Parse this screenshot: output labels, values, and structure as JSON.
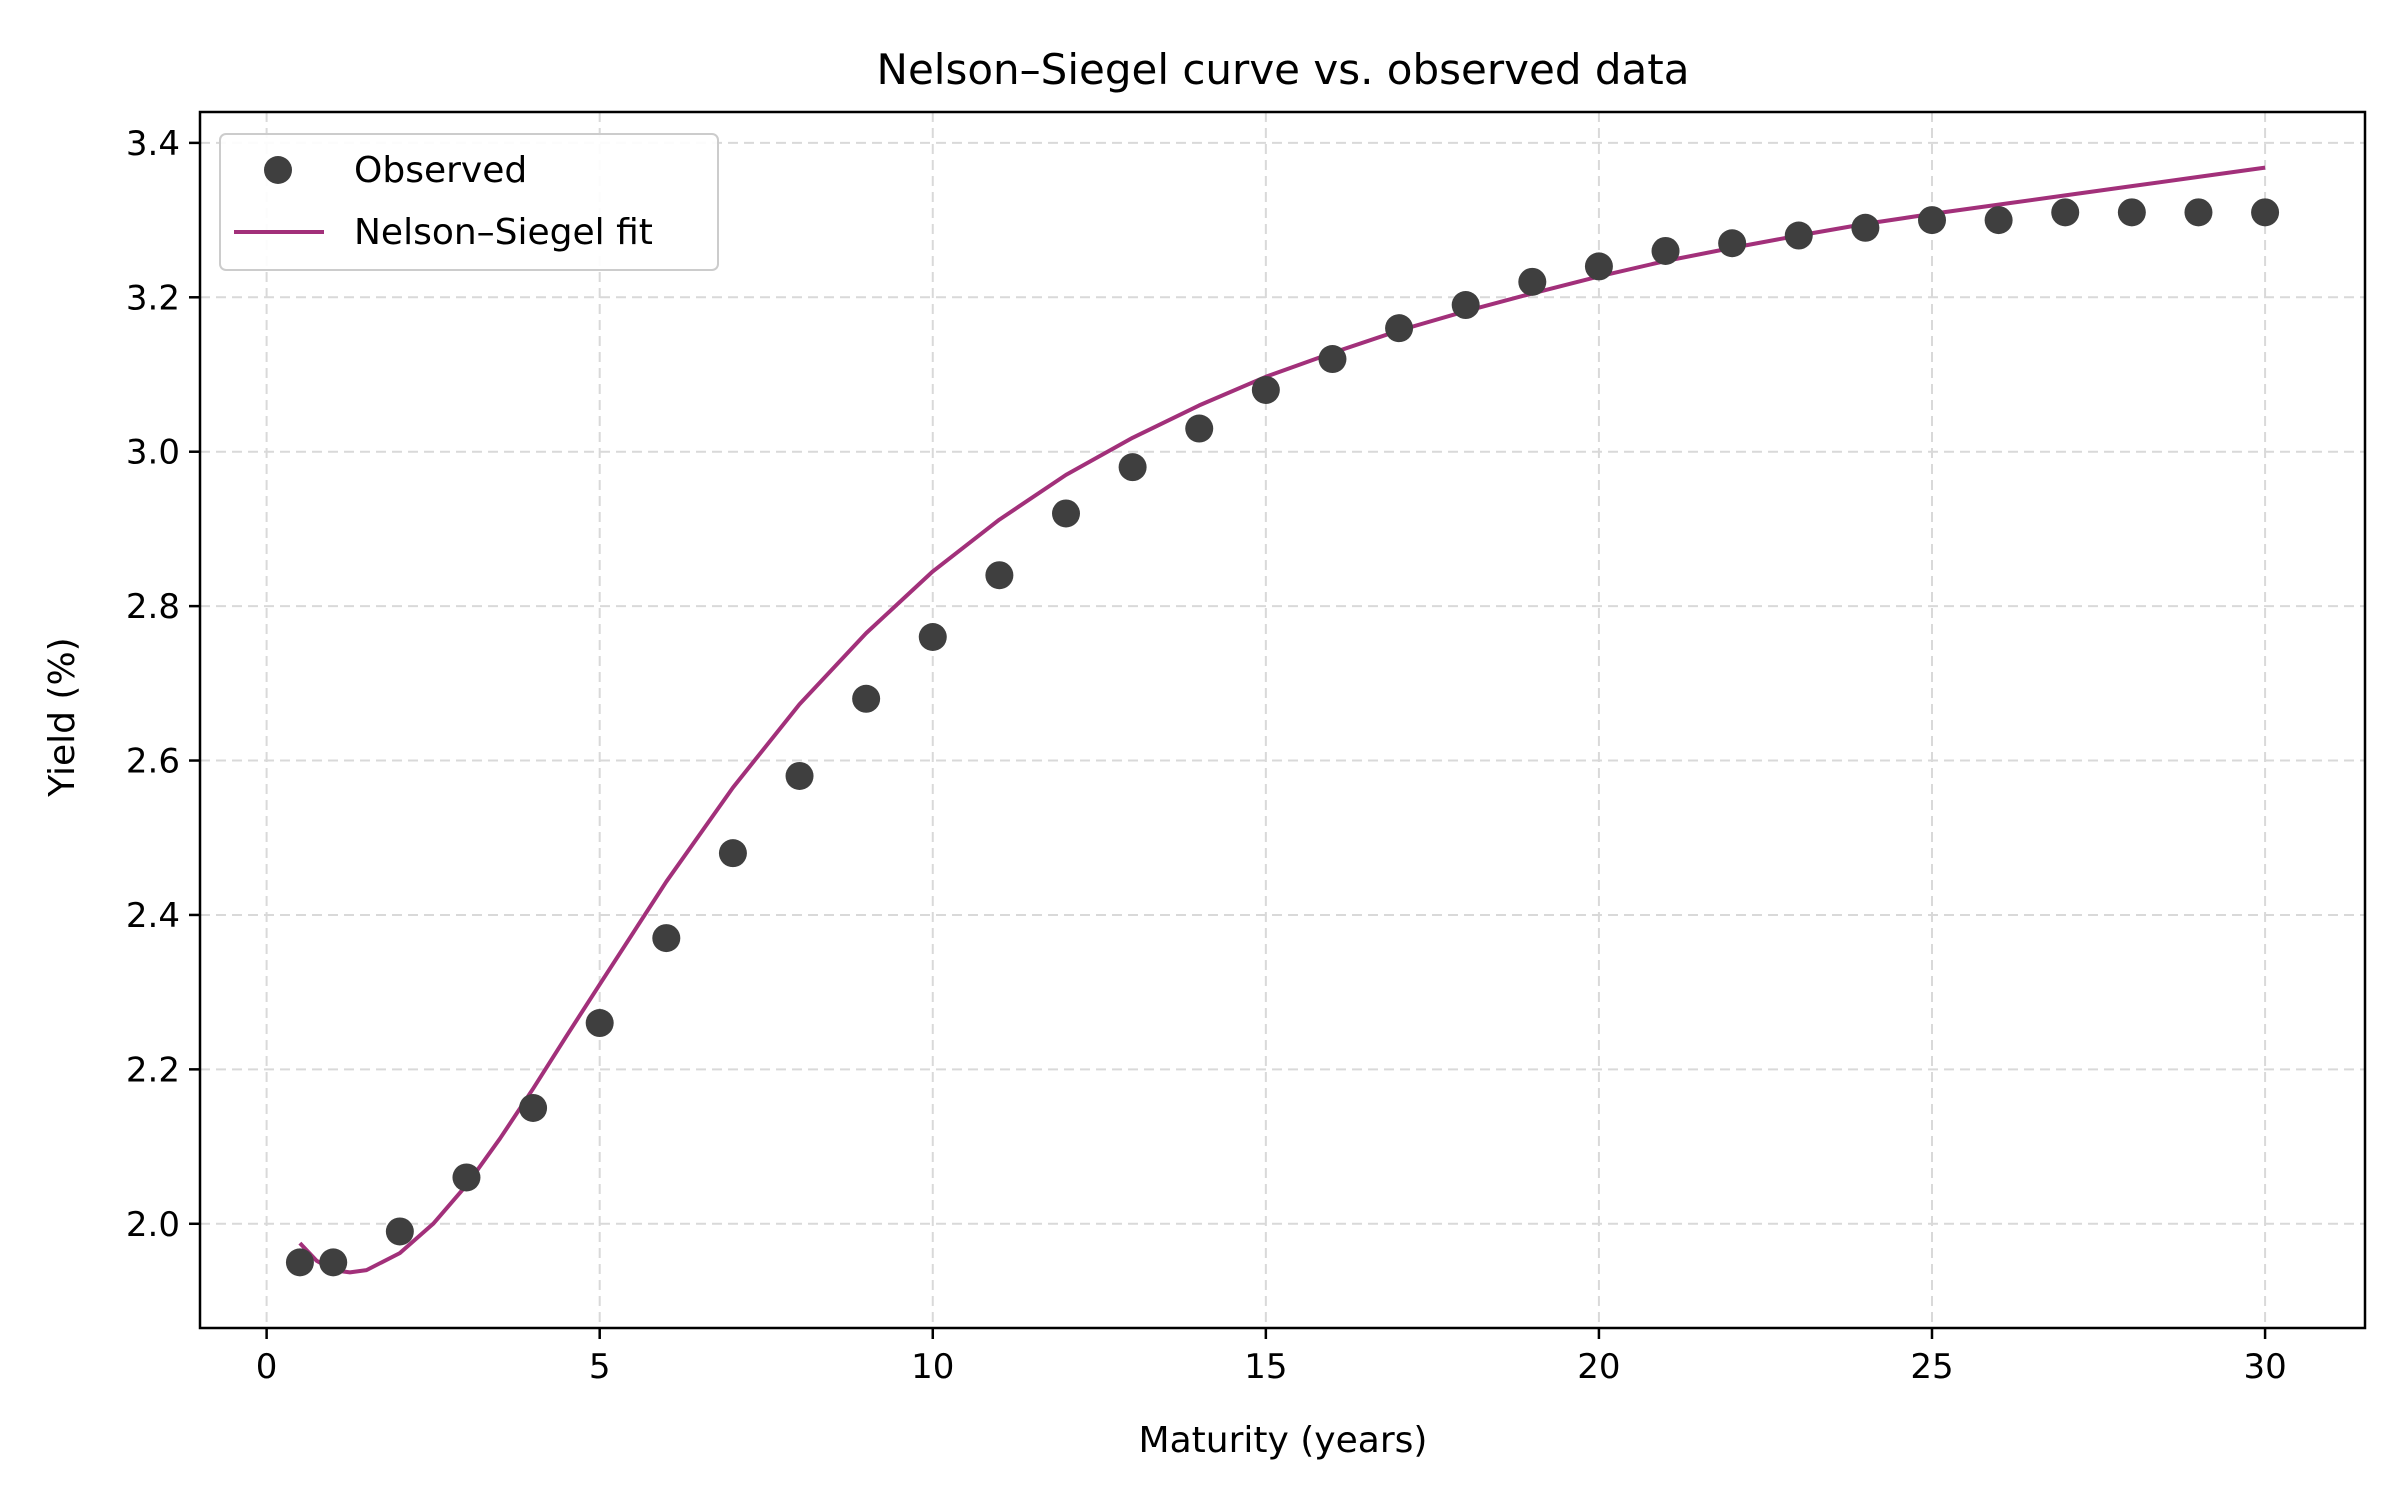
{
  "chart_data": {
    "type": "scatter",
    "title": "Nelson–Siegel curve vs. observed data",
    "xlabel": "Maturity (years)",
    "ylabel": "Yield (%)",
    "xlim": [
      -1,
      31.5
    ],
    "ylim": [
      1.865,
      3.44
    ],
    "xticks": [
      0,
      5,
      10,
      15,
      20,
      25,
      30
    ],
    "yticks": [
      2.0,
      2.2,
      2.4,
      2.6,
      2.8,
      3.0,
      3.2,
      3.4
    ],
    "xtick_labels": [
      "0",
      "5",
      "10",
      "15",
      "20",
      "25",
      "30"
    ],
    "ytick_labels": [
      "2.0",
      "2.2",
      "2.4",
      "2.6",
      "2.8",
      "3.0",
      "3.2",
      "3.4"
    ],
    "grid": true,
    "legend_position": "top-left",
    "series": [
      {
        "name": "Observed",
        "kind": "scatter",
        "color": "#3f3f3f",
        "x": [
          0.5,
          1,
          2,
          3,
          4,
          5,
          6,
          7,
          8,
          9,
          10,
          11,
          12,
          13,
          14,
          15,
          16,
          17,
          18,
          19,
          20,
          21,
          22,
          23,
          24,
          25,
          26,
          27,
          28,
          29,
          30
        ],
        "y": [
          1.95,
          1.95,
          1.99,
          2.06,
          2.15,
          2.26,
          2.37,
          2.48,
          2.58,
          2.68,
          2.76,
          2.84,
          2.92,
          2.98,
          3.03,
          3.08,
          3.12,
          3.16,
          3.19,
          3.22,
          3.24,
          3.26,
          3.27,
          3.28,
          3.29,
          3.3,
          3.3,
          3.31,
          3.31,
          3.31,
          3.31
        ]
      },
      {
        "name": "Nelson–Siegel fit",
        "kind": "line",
        "color": "#a2307a",
        "x": [
          0.5,
          0.75,
          1,
          1.25,
          1.5,
          2,
          2.5,
          3,
          3.5,
          4,
          4.5,
          5,
          6,
          7,
          8,
          9,
          10,
          11,
          12,
          13,
          14,
          15,
          16,
          17,
          18,
          19,
          20,
          21,
          22,
          23,
          24,
          25,
          26,
          27,
          28,
          29,
          30
        ],
        "y": [
          1.975,
          1.952,
          1.94,
          1.937,
          1.94,
          1.962,
          2.0,
          2.05,
          2.11,
          2.175,
          2.243,
          2.31,
          2.443,
          2.565,
          2.673,
          2.765,
          2.845,
          2.912,
          2.97,
          3.018,
          3.06,
          3.097,
          3.128,
          3.157,
          3.182,
          3.205,
          3.227,
          3.247,
          3.264,
          3.28,
          3.295,
          3.308,
          3.32,
          3.332,
          3.344,
          3.356,
          3.368
        ]
      }
    ]
  }
}
